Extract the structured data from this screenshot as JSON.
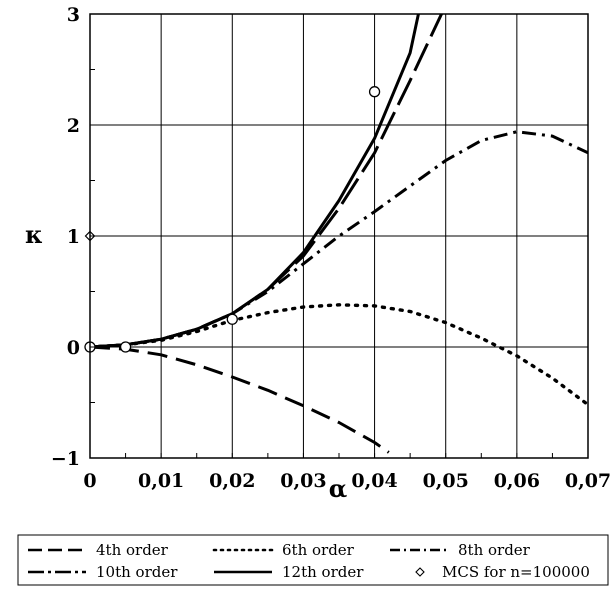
{
  "chart_data": {
    "type": "line",
    "xlabel": "α",
    "ylabel": "κ",
    "xlim": [
      0,
      0.07
    ],
    "ylim": [
      -1,
      3
    ],
    "grid": true,
    "legend_position": "bottom",
    "x_ticks": [
      "0",
      "0,01",
      "0,02",
      "0,03",
      "0,04",
      "0,05",
      "0,06",
      "0,07"
    ],
    "y_ticks": [
      "3",
      "2",
      "1",
      "0",
      "−1"
    ],
    "series": [
      {
        "name": "4th order",
        "style": "dashed",
        "x": [
          0,
          0.005,
          0.01,
          0.015,
          0.02,
          0.025,
          0.03,
          0.035,
          0.04,
          0.042
        ],
        "y": [
          0,
          -0.02,
          -0.07,
          -0.16,
          -0.27,
          -0.39,
          -0.53,
          -0.68,
          -0.86,
          -0.95
        ]
      },
      {
        "name": "6th order",
        "style": "dotted",
        "x": [
          0,
          0.005,
          0.01,
          0.015,
          0.02,
          0.025,
          0.03,
          0.035,
          0.04,
          0.045,
          0.05,
          0.055,
          0.06,
          0.065,
          0.07
        ],
        "y": [
          0,
          0.02,
          0.06,
          0.14,
          0.24,
          0.31,
          0.36,
          0.38,
          0.37,
          0.32,
          0.22,
          0.08,
          -0.08,
          -0.28,
          -0.52
        ]
      },
      {
        "name": "8th order",
        "style": "dashdot",
        "x": [
          0,
          0.005,
          0.01,
          0.015,
          0.02,
          0.025,
          0.03,
          0.035,
          0.04,
          0.045,
          0.05,
          0.055,
          0.06,
          0.065,
          0.07
        ],
        "y": [
          0,
          0.02,
          0.07,
          0.16,
          0.3,
          0.5,
          0.75,
          1.0,
          1.22,
          1.45,
          1.68,
          1.86,
          1.94,
          1.9,
          1.75
        ]
      },
      {
        "name": "10th order",
        "style": "longdash",
        "x": [
          0,
          0.005,
          0.01,
          0.015,
          0.02,
          0.025,
          0.03,
          0.035,
          0.04,
          0.045,
          0.05
        ],
        "y": [
          0,
          0.02,
          0.07,
          0.16,
          0.3,
          0.52,
          0.82,
          1.25,
          1.75,
          2.4,
          3.08
        ]
      },
      {
        "name": "12th order",
        "style": "solid",
        "x": [
          0,
          0.005,
          0.01,
          0.015,
          0.02,
          0.025,
          0.03,
          0.035,
          0.04,
          0.045,
          0.0465
        ],
        "y": [
          0,
          0.02,
          0.07,
          0.16,
          0.3,
          0.52,
          0.85,
          1.32,
          1.88,
          2.65,
          3.1
        ]
      },
      {
        "name": "MCS for n=100000",
        "style": "markers",
        "points": [
          {
            "x": 0,
            "y": 0,
            "marker": "circle"
          },
          {
            "x": 0.005,
            "y": 0,
            "marker": "circle"
          },
          {
            "x": 0.02,
            "y": 0.25,
            "marker": "circle"
          },
          {
            "x": 0.04,
            "y": 2.3,
            "marker": "circle"
          },
          {
            "x": 0,
            "y": 1.0,
            "marker": "diamond"
          }
        ]
      }
    ]
  },
  "legend": {
    "items": [
      {
        "label": "4th order",
        "style": "dashed"
      },
      {
        "label": "6th order",
        "style": "dotted"
      },
      {
        "label": "8th order",
        "style": "dashdot"
      },
      {
        "label": "10th order",
        "style": "longdash"
      },
      {
        "label": "12th order",
        "style": "solid"
      },
      {
        "label": "MCS for n=100000",
        "style": "diamond"
      }
    ]
  }
}
